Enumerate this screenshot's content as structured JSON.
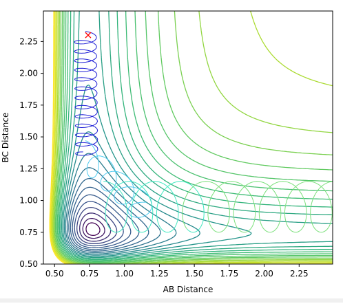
{
  "chart_data": {
    "type": "contour",
    "xlabel": "AB Distance",
    "ylabel": "BC Distance",
    "xlim": [
      0.42,
      2.49
    ],
    "ylim": [
      0.5,
      2.49
    ],
    "xticks": [
      "0.50",
      "0.75",
      "1.00",
      "1.25",
      "1.50",
      "1.75",
      "2.00",
      "2.25"
    ],
    "yticks": [
      "0.50",
      "0.75",
      "1.00",
      "1.25",
      "1.50",
      "1.75",
      "2.00",
      "2.25"
    ],
    "colormap": "viridis",
    "colors": {
      "deep": "#440154",
      "dark_blue": "#31688e",
      "teal": "#21918c",
      "green": "#5ec962",
      "yellow": "#fde725",
      "trajectory_blue": "#1f1fd6",
      "trajectory_light": "#4ecbf0",
      "trajectory_cyan": "#3fe8c0",
      "trajectory_green": "#7be07b",
      "start_marker": "#ff0000"
    },
    "start_marker": {
      "x": 0.74,
      "y": 2.3,
      "symbol": "x"
    },
    "contour_levels_count": 26,
    "trajectory": {
      "description_points": [
        [
          0.74,
          2.3
        ],
        [
          0.7,
          2.1
        ],
        [
          0.72,
          1.8
        ],
        [
          0.7,
          1.55
        ],
        [
          0.8,
          1.3
        ],
        [
          0.9,
          1.1
        ],
        [
          1.1,
          0.9
        ],
        [
          1.3,
          0.85
        ],
        [
          1.6,
          0.85
        ],
        [
          1.9,
          0.85
        ],
        [
          2.25,
          0.85
        ],
        [
          2.45,
          0.85
        ]
      ]
    }
  }
}
